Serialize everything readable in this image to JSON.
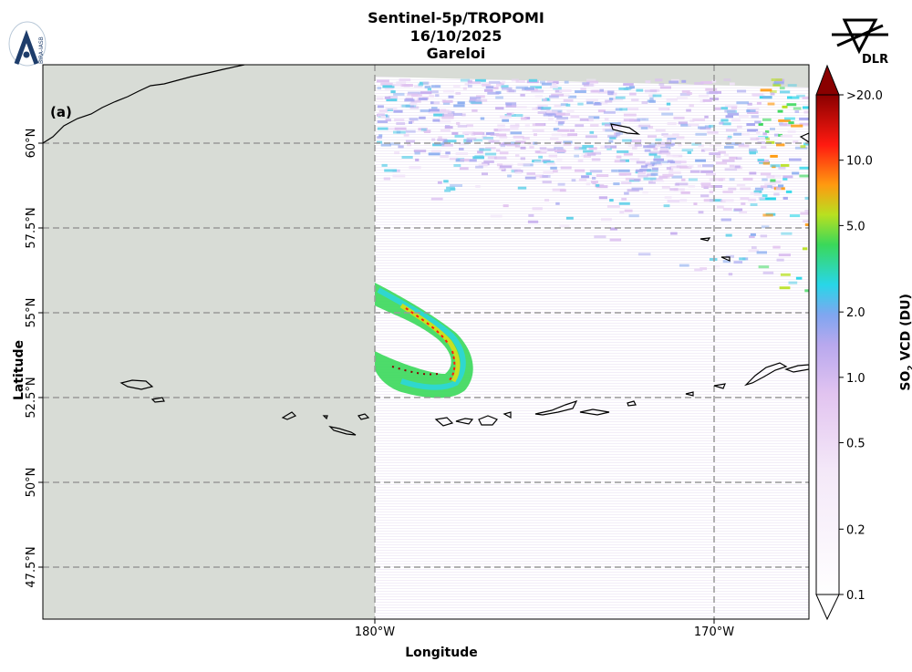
{
  "header": {
    "line1": "Sentinel-5p/TROPOMI",
    "line2": "16/10/2025",
    "line3": "Gareloi"
  },
  "logos": {
    "left": {
      "text": "BIRA-IASB",
      "icon": "bira-iasb-logo"
    },
    "right": {
      "text": "DLR",
      "icon": "dlr-logo"
    }
  },
  "panel_label": "(a)",
  "axes": {
    "xlabel": "Longitude",
    "ylabel": "Latitude",
    "lon_ticks": [
      {
        "value": -180,
        "label": "180°W"
      },
      {
        "value": -170,
        "label": "170°W"
      }
    ],
    "lat_ticks": [
      {
        "value": 60,
        "label": "60°N"
      },
      {
        "value": 57.5,
        "label": "57.5°N"
      },
      {
        "value": 55,
        "label": "55°N"
      },
      {
        "value": 52.5,
        "label": "52.5°N"
      },
      {
        "value": 50,
        "label": "50°N"
      },
      {
        "value": 47.5,
        "label": "47.5°N"
      }
    ]
  },
  "colorbar": {
    "label_main": "SO",
    "label_sub": "2",
    "label_rest": " VCD (DU)",
    "ticks": [
      {
        "value": 20,
        "label": ">20.0"
      },
      {
        "value": 10,
        "label": "10.0"
      },
      {
        "value": 5,
        "label": "5.0"
      },
      {
        "value": 2,
        "label": "2.0"
      },
      {
        "value": 1,
        "label": "1.0"
      },
      {
        "value": 0.5,
        "label": "0.5"
      },
      {
        "value": 0.2,
        "label": "0.2"
      },
      {
        "value": 0.1,
        "label": "0.1"
      }
    ],
    "scale": "log",
    "min": 0.1,
    "max": 20
  },
  "colors": {
    "no_data": "#d8dcd6",
    "grid": "#999999",
    "coast": "#000000"
  }
}
